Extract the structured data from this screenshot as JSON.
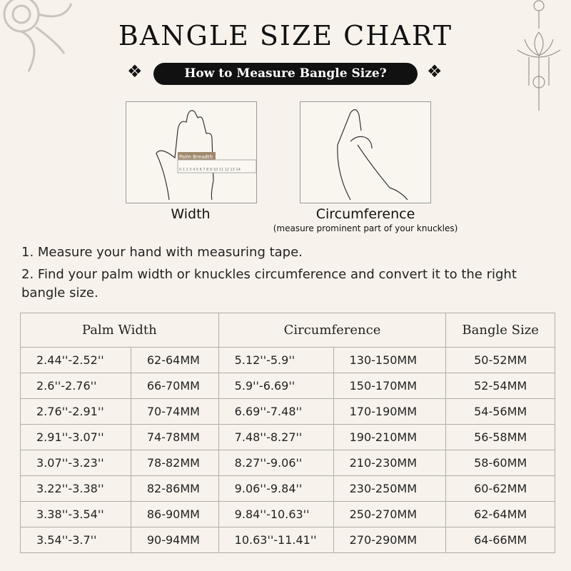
{
  "title": "BANGLE SIZE CHART",
  "subtitle": "How to Measure Bangle Size?",
  "figures": {
    "width": {
      "label": "Width",
      "ruler_label": "Palm Breadth",
      "ruler_ticks": "0 1 2 3 4 5 6 7 8 9 10 11 12 13 14"
    },
    "circumference": {
      "label": "Circumference",
      "note": "(measure prominent part of your knuckles)"
    }
  },
  "steps": [
    "1. Measure your hand with measuring tape.",
    "2. Find your palm width or knuckles circumference and convert it to the right bangle size."
  ],
  "table": {
    "headers": [
      "Palm Width",
      "Circumference",
      "Bangle Size"
    ],
    "rows": [
      [
        "2.44''-2.52''",
        "62-64MM",
        "5.12''-5.9''",
        "130-150MM",
        "50-52MM"
      ],
      [
        "2.6''-2.76''",
        "66-70MM",
        "5.9''-6.69''",
        "150-170MM",
        "52-54MM"
      ],
      [
        "2.76''-2.91''",
        "70-74MM",
        "6.69''-7.48''",
        "170-190MM",
        "54-56MM"
      ],
      [
        "2.91''-3.07''",
        "74-78MM",
        "7.48''-8.27''",
        "190-210MM",
        "56-58MM"
      ],
      [
        "3.07''-3.23''",
        "78-82MM",
        "8.27''-9.06''",
        "210-230MM",
        "58-60MM"
      ],
      [
        "3.22''-3.38''",
        "82-86MM",
        "9.06''-9.84''",
        "230-250MM",
        "60-62MM"
      ],
      [
        "3.38''-3.54''",
        "86-90MM",
        "9.84''-10.63''",
        "250-270MM",
        "62-64MM"
      ],
      [
        "3.54''-3.7''",
        "90-94MM",
        "10.63''-11.41''",
        "270-290MM",
        "64-66MM"
      ]
    ]
  },
  "colors": {
    "background": "#f7f3ec",
    "pill": "#111111",
    "ruler_label": "#a08a6e",
    "border": "#b0aca6"
  }
}
